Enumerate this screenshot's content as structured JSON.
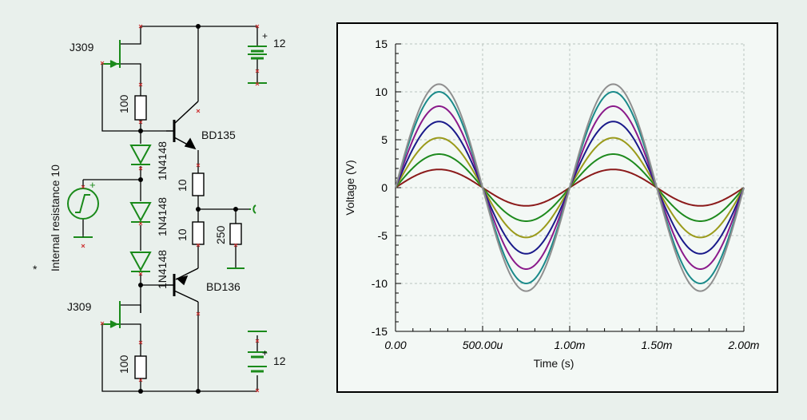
{
  "schematic": {
    "jfet_top_label": "J309",
    "jfet_bottom_label": "J309",
    "r_top_source": "100",
    "r_bottom_source": "100",
    "q_top_label": "BD135",
    "q_bottom_label": "BD136",
    "diode_1": "1N4148",
    "diode_2": "1N4148",
    "diode_3": "1N4148",
    "r_emitter_top": "10",
    "r_emitter_bottom": "10",
    "r_load": "250",
    "supply_top": "12",
    "supply_bottom": "12",
    "source_label": "Internal resistance 10",
    "source_marker": "*",
    "plus_top": "+",
    "plus_bottom": "+",
    "plus_source": "+"
  },
  "colors": {
    "wire": "#000000",
    "component_green": "#1a8a1a",
    "node_marker": "#cc2a2a"
  },
  "chart_data": {
    "type": "line",
    "xlabel": "Time (s)",
    "ylabel": "Voltage (V)",
    "xlim": [
      0,
      0.002
    ],
    "ylim": [
      -15,
      15
    ],
    "x_ticks": [
      0,
      0.0005,
      0.001,
      0.0015,
      0.002
    ],
    "x_tick_labels": [
      "0.00",
      "500.00u",
      "1.00m",
      "1.50m",
      "2.00m"
    ],
    "y_ticks": [
      15,
      10,
      5,
      0,
      -5,
      -10,
      -15
    ],
    "y_tick_labels": [
      "15",
      "10",
      "5",
      "0",
      "-5",
      "-10",
      "-15"
    ],
    "grid": true,
    "frequency_hz": 1000,
    "series": [
      {
        "amplitude": 1.9,
        "color": "#8b1a1a"
      },
      {
        "amplitude": 3.5,
        "color": "#1e8a1e"
      },
      {
        "amplitude": 5.2,
        "color": "#9a9a1a"
      },
      {
        "amplitude": 6.9,
        "color": "#1a1a8a"
      },
      {
        "amplitude": 8.5,
        "color": "#8a1a8a"
      },
      {
        "amplitude": 10.0,
        "color": "#1a8a8a"
      },
      {
        "amplitude": 10.8,
        "color": "#8f8f8f"
      }
    ]
  }
}
